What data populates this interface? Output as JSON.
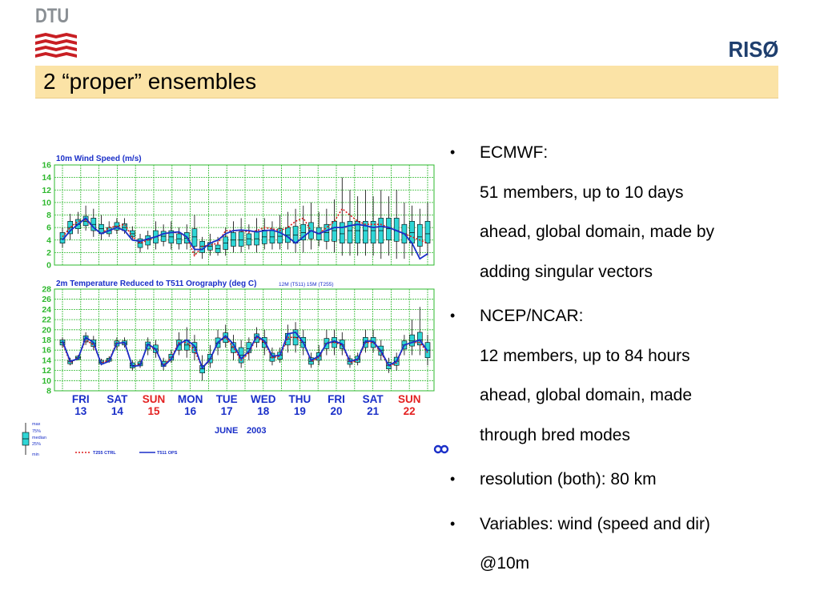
{
  "header": {
    "left_logo_text": "DTU",
    "right_logo_text": "RISØ",
    "title": "2 “proper” ensembles"
  },
  "bullets": [
    {
      "lines": [
        "ECMWF:",
        "51 members, up to 10 days",
        "ahead, global domain, made by",
        "adding singular vectors"
      ]
    },
    {
      "lines": [
        "NCEP/NCAR:",
        "12 members, up to 84 hours",
        "ahead, global domain, made",
        "through bred modes"
      ]
    },
    {
      "lines": [
        "resolution (both): 80 km"
      ]
    },
    {
      "lines": [
        "Variables: wind (speed and dir)",
        "@10m"
      ]
    }
  ],
  "chart_data": [
    {
      "type": "box",
      "title": "10m Wind Speed (m/s)",
      "ylim": [
        0,
        16
      ],
      "yticks": [
        0,
        2,
        4,
        6,
        8,
        10,
        12,
        14,
        16
      ],
      "x_days": [
        "FRI 13",
        "SAT 14",
        "SUN 15",
        "MON 16",
        "TUE 17",
        "WED 18",
        "THU 19",
        "FRI 20",
        "SAT 21",
        "SUN 22"
      ],
      "steps_per_day": 4,
      "boxes": [
        [
          2.8,
          3.5,
          4.2,
          5.2,
          6.0
        ],
        [
          4.0,
          5.0,
          6.0,
          7.0,
          8.2
        ],
        [
          5.0,
          5.8,
          6.5,
          7.3,
          8.5
        ],
        [
          5.5,
          6.3,
          7.0,
          7.8,
          9.5
        ],
        [
          4.5,
          5.5,
          6.5,
          7.5,
          9.0
        ],
        [
          4.0,
          5.0,
          5.8,
          6.5,
          8.0
        ],
        [
          4.5,
          5.0,
          5.5,
          6.0,
          7.0
        ],
        [
          5.0,
          5.6,
          6.2,
          6.8,
          7.5
        ],
        [
          5.0,
          5.5,
          6.0,
          6.6,
          7.5
        ],
        [
          4.0,
          4.5,
          5.0,
          5.5,
          6.2
        ],
        [
          2.0,
          2.8,
          3.5,
          4.2,
          5.0
        ],
        [
          2.5,
          3.2,
          4.0,
          4.7,
          5.5
        ],
        [
          2.5,
          3.5,
          4.5,
          5.5,
          7.0
        ],
        [
          3.0,
          3.8,
          4.6,
          5.4,
          6.5
        ],
        [
          2.5,
          3.5,
          4.5,
          5.5,
          7.0
        ],
        [
          2.5,
          3.4,
          4.2,
          5.0,
          6.0
        ],
        [
          2.5,
          3.5,
          4.3,
          5.2,
          6.5
        ],
        [
          1.5,
          3.0,
          4.5,
          5.8,
          8.0
        ],
        [
          1.0,
          2.0,
          3.0,
          3.8,
          4.5
        ],
        [
          1.5,
          2.4,
          3.0,
          3.6,
          5.0
        ],
        [
          1.5,
          2.0,
          2.6,
          3.2,
          4.5
        ],
        [
          1.5,
          2.5,
          3.5,
          4.5,
          6.0
        ],
        [
          2.0,
          3.0,
          4.0,
          5.2,
          7.0
        ],
        [
          2.0,
          3.0,
          4.0,
          5.3,
          7.5
        ],
        [
          2.5,
          3.2,
          4.2,
          5.0,
          6.5
        ],
        [
          2.0,
          3.2,
          4.2,
          5.4,
          7.5
        ],
        [
          2.5,
          3.4,
          4.5,
          5.6,
          7.5
        ],
        [
          2.5,
          3.5,
          4.5,
          5.5,
          7.0
        ],
        [
          2.5,
          3.5,
          4.6,
          5.8,
          8.0
        ],
        [
          2.5,
          3.6,
          4.8,
          6.0,
          8.5
        ],
        [
          2.0,
          3.5,
          4.8,
          6.2,
          9.0
        ],
        [
          2.0,
          4.0,
          5.2,
          6.5,
          9.5
        ],
        [
          2.5,
          4.2,
          5.5,
          6.8,
          10.0
        ],
        [
          3.0,
          4.0,
          5.0,
          6.0,
          8.5
        ],
        [
          2.5,
          3.8,
          5.2,
          6.5,
          9.0
        ],
        [
          2.0,
          3.8,
          5.5,
          7.0,
          10.5
        ],
        [
          1.5,
          3.5,
          5.0,
          6.8,
          14.0
        ],
        [
          1.5,
          3.5,
          5.5,
          7.0,
          12.0
        ],
        [
          1.5,
          3.5,
          5.5,
          7.0,
          11.0
        ],
        [
          1.5,
          3.5,
          5.5,
          7.0,
          12.0
        ],
        [
          1.5,
          3.5,
          5.5,
          7.0,
          11.0
        ],
        [
          1.0,
          3.5,
          5.5,
          7.5,
          12.0
        ],
        [
          1.5,
          4.0,
          5.8,
          7.5,
          11.0
        ],
        [
          1.0,
          3.8,
          5.5,
          7.5,
          12.0
        ],
        [
          1.0,
          3.5,
          5.0,
          6.5,
          10.0
        ],
        [
          1.5,
          3.5,
          5.2,
          7.0,
          9.5
        ],
        [
          1.5,
          3.0,
          4.5,
          6.5,
          9.0
        ],
        [
          1.5,
          3.5,
          5.0,
          7.0,
          10.0
        ]
      ],
      "series": [
        {
          "name": "T255 CTRL",
          "color": "#dd1c1c",
          "style": "dotted",
          "values": [
            4.5,
            6.0,
            7.0,
            7.2,
            6.0,
            5.0,
            6.0,
            6.2,
            6.5,
            4.5,
            3.5,
            4.0,
            4.5,
            5.0,
            5.2,
            5.2,
            4.5,
            1.5,
            3.0,
            3.2,
            3.5,
            5.5,
            5.5,
            5.5,
            5.3,
            5.5,
            6.0,
            5.8,
            5.5,
            6.0,
            7.0,
            7.5,
            5.5,
            5.0,
            6.0,
            7.0,
            9.0,
            8.0,
            7.0,
            6.5,
            6.5,
            6.5,
            6.0,
            5.5,
            5.0,
            4.5,
            4.0,
            3.5
          ]
        },
        {
          "name": "T511 OPS",
          "color": "#1a2fc8",
          "style": "solid",
          "values": [
            4.0,
            5.5,
            6.5,
            7.5,
            6.0,
            5.0,
            5.5,
            6.0,
            5.5,
            4.0,
            3.8,
            4.2,
            4.5,
            5.0,
            5.2,
            5.3,
            4.5,
            2.5,
            2.5,
            3.5,
            4.0,
            5.0,
            5.5,
            5.6,
            5.5,
            5.3,
            5.5,
            5.6,
            5.2,
            4.5,
            3.5,
            4.5,
            5.5,
            5.0,
            5.5,
            6.0,
            6.0,
            6.3,
            6.5,
            6.3,
            6.0,
            6.2,
            6.0,
            5.5,
            5.0,
            3.5,
            1.0,
            1.8
          ]
        }
      ]
    },
    {
      "type": "box",
      "title": "2m Temperature Reduced to T511 Orography (deg C)",
      "subtitle": "12M (T511) 15M (T255)",
      "ylim": [
        8,
        28
      ],
      "yticks": [
        8,
        10,
        12,
        14,
        16,
        18,
        20,
        22,
        24,
        26,
        28
      ],
      "x_days": [
        "FRI 13",
        "SAT 14",
        "SUN 15",
        "MON 16",
        "TUE 17",
        "WED 18",
        "THU 19",
        "FRI 20",
        "SAT 21",
        "SUN 22"
      ],
      "x_labels_top": [
        "FRI",
        "SAT",
        "SUN",
        "MON",
        "TUE",
        "WED",
        "THU",
        "FRI",
        "SAT",
        "SUN"
      ],
      "x_labels_bottom": [
        "13",
        "14",
        "15",
        "16",
        "17",
        "18",
        "19",
        "20",
        "21",
        "22"
      ],
      "weekend_color": "#e32121",
      "weekday_color": "#1a2fc8",
      "month_label": "JUNE",
      "year_label": "2003",
      "boxes": [
        [
          16.5,
          17.0,
          17.5,
          18.0,
          18.5
        ],
        [
          13.0,
          13.3,
          13.7,
          14.0,
          14.5
        ],
        [
          14.0,
          14.2,
          14.5,
          14.8,
          15.0
        ],
        [
          17.0,
          17.6,
          18.2,
          18.8,
          19.5
        ],
        [
          16.0,
          16.7,
          17.3,
          18.0,
          18.8
        ],
        [
          13.0,
          13.3,
          13.6,
          14.0,
          14.3
        ],
        [
          13.5,
          13.8,
          14.1,
          14.4,
          14.8
        ],
        [
          16.0,
          16.8,
          17.3,
          17.8,
          18.5
        ],
        [
          16.5,
          17.0,
          17.4,
          17.8,
          18.5
        ],
        [
          12.0,
          12.5,
          13.0,
          13.5,
          14.0
        ],
        [
          12.5,
          12.9,
          13.3,
          13.7,
          14.2
        ],
        [
          15.0,
          16.2,
          17.0,
          17.6,
          18.5
        ],
        [
          14.5,
          15.5,
          16.2,
          17.0,
          18.0
        ],
        [
          12.0,
          12.8,
          13.2,
          13.8,
          14.5
        ],
        [
          13.5,
          14.0,
          14.6,
          15.2,
          16.0
        ],
        [
          15.0,
          16.0,
          17.0,
          18.0,
          19.5
        ],
        [
          14.5,
          16.0,
          17.0,
          18.0,
          20.5
        ],
        [
          14.0,
          15.5,
          16.6,
          17.5,
          19.0
        ],
        [
          10.0,
          11.5,
          12.3,
          13.0,
          15.0
        ],
        [
          12.5,
          13.5,
          14.3,
          15.2,
          17.0
        ],
        [
          15.0,
          16.5,
          17.4,
          18.4,
          20.0
        ],
        [
          16.5,
          17.5,
          18.5,
          19.4,
          21.0
        ],
        [
          14.0,
          15.5,
          16.5,
          17.5,
          19.0
        ],
        [
          12.5,
          13.5,
          15.0,
          16.5,
          18.0
        ],
        [
          14.0,
          15.5,
          16.3,
          17.5,
          18.5
        ],
        [
          16.5,
          17.5,
          18.5,
          19.2,
          20.5
        ],
        [
          15.0,
          16.5,
          17.5,
          18.5,
          20.0
        ],
        [
          13.0,
          13.8,
          14.6,
          15.4,
          16.5
        ],
        [
          13.5,
          14.2,
          15.0,
          15.6,
          16.5
        ],
        [
          15.5,
          17.0,
          18.2,
          19.3,
          21.0
        ],
        [
          15.5,
          17.0,
          18.5,
          20.0,
          21.5
        ],
        [
          15.0,
          16.5,
          17.5,
          18.5,
          20.0
        ],
        [
          12.5,
          13.2,
          13.8,
          14.5,
          15.5
        ],
        [
          13.0,
          14.0,
          14.8,
          15.5,
          17.0
        ],
        [
          15.0,
          16.3,
          17.3,
          18.3,
          20.0
        ],
        [
          15.0,
          16.5,
          17.5,
          18.5,
          20.0
        ],
        [
          15.0,
          16.3,
          17.0,
          18.0,
          19.5
        ],
        [
          12.5,
          13.2,
          13.8,
          14.3,
          15.0
        ],
        [
          13.0,
          13.6,
          14.2,
          14.8,
          15.5
        ],
        [
          15.5,
          16.5,
          17.5,
          18.5,
          20.0
        ],
        [
          15.5,
          16.5,
          17.5,
          18.5,
          20.0
        ],
        [
          14.0,
          15.0,
          16.0,
          16.8,
          18.0
        ],
        [
          11.5,
          12.3,
          13.0,
          13.6,
          14.5
        ],
        [
          12.0,
          13.0,
          13.8,
          14.6,
          15.5
        ],
        [
          15.0,
          16.2,
          17.0,
          17.8,
          19.0
        ],
        [
          15.0,
          16.8,
          17.8,
          19.0,
          22.0
        ],
        [
          15.0,
          17.0,
          18.0,
          19.5,
          24.5
        ],
        [
          13.0,
          14.5,
          16.0,
          17.5,
          19.0
        ]
      ],
      "series": [
        {
          "name": "T255 CTRL",
          "color": "#dd1c1c",
          "style": "dotted",
          "values": [
            17.5,
            13.5,
            14.5,
            18.0,
            17.0,
            13.5,
            14.0,
            17.5,
            17.3,
            12.8,
            13.2,
            17.0,
            16.0,
            13.0,
            14.5,
            17.5,
            17.5,
            16.0,
            12.5,
            14.0,
            17.5,
            18.5,
            16.5,
            14.0,
            15.5,
            18.5,
            17.5,
            14.5,
            14.8,
            18.5,
            18.5,
            17.5,
            13.8,
            14.5,
            17.5,
            17.5,
            17.0,
            13.5,
            14.0,
            17.5,
            17.5,
            15.5,
            12.8,
            13.5,
            17.0,
            17.5,
            17.5,
            15.5
          ]
        },
        {
          "name": "T511 OPS",
          "color": "#1a2fc8",
          "style": "solid",
          "values": [
            17.8,
            13.8,
            14.3,
            18.5,
            17.5,
            13.2,
            13.8,
            17.3,
            17.5,
            12.8,
            13.0,
            17.2,
            16.2,
            12.8,
            14.2,
            17.2,
            18.0,
            16.8,
            12.5,
            14.2,
            17.5,
            18.8,
            17.2,
            14.3,
            15.8,
            18.8,
            17.8,
            14.8,
            15.0,
            19.2,
            19.5,
            17.5,
            14.0,
            14.8,
            17.3,
            17.8,
            17.2,
            13.8,
            14.2,
            17.8,
            17.7,
            15.8,
            13.0,
            13.8,
            17.0,
            17.5,
            18.0,
            15.8
          ]
        }
      ],
      "legend": {
        "box_labels": [
          "max",
          "75%",
          "median",
          "25%",
          "min"
        ],
        "lines": [
          "T255 CTRL",
          "T511 OPS"
        ]
      }
    }
  ]
}
